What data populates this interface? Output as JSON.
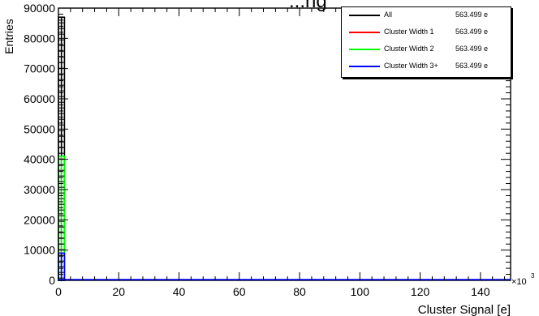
{
  "chart_data": {
    "type": "bar",
    "title": "...ng",
    "xlabel": "Cluster Signal [e]",
    "ylabel": "Entries",
    "x_multiplier_label": "×10",
    "x_multiplier_exp": "3",
    "xlim": [
      0,
      150
    ],
    "ylim": [
      0,
      90000
    ],
    "x_ticks": [
      "0",
      "20",
      "40",
      "60",
      "80",
      "100",
      "120",
      "140"
    ],
    "y_ticks": [
      "0",
      "10000",
      "20000",
      "30000",
      "40000",
      "50000",
      "60000",
      "70000",
      "80000",
      "90000"
    ],
    "series": [
      {
        "name": "All",
        "color": "#000000",
        "x": [
          0,
          1
        ],
        "values": [
          87000,
          87000
        ]
      },
      {
        "name": "Cluster Width 1",
        "color": "#ff0000",
        "x": [
          0,
          1
        ],
        "values": [
          0,
          0
        ]
      },
      {
        "name": "Cluster Width 2",
        "color": "#00ff00",
        "x": [
          0,
          1
        ],
        "values": [
          41000,
          41000
        ]
      },
      {
        "name": "Cluster Width 3+",
        "color": "#0000ff",
        "x": [
          0,
          1
        ],
        "values": [
          9000,
          9000
        ]
      }
    ],
    "legend": {
      "placement": "top-right",
      "entries": [
        {
          "name": "All",
          "value": "563.499 e",
          "color": "#000000"
        },
        {
          "name": "Cluster Width 1",
          "value": "563.499 e",
          "color": "#ff0000"
        },
        {
          "name": "Cluster Width 2",
          "value": "563.499 e",
          "color": "#00ff00"
        },
        {
          "name": "Cluster Width 3+",
          "value": "563.499 e",
          "color": "#0000ff"
        }
      ]
    },
    "grid": false
  }
}
